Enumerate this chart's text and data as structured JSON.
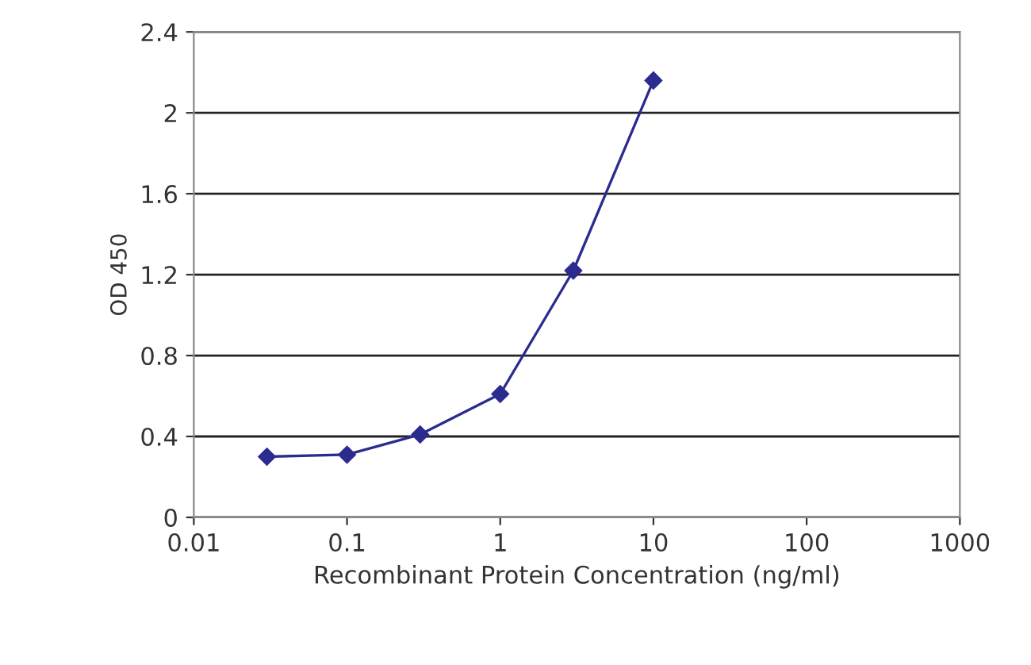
{
  "chart_data": {
    "type": "line",
    "xlabel": "Recombinant Protein Concentration (ng/ml)",
    "ylabel": "OD 450",
    "x": [
      0.03,
      0.1,
      0.3,
      1,
      3,
      10
    ],
    "series": [
      {
        "color": "#2b2b90",
        "values": [
          0.3,
          0.31,
          0.41,
          0.61,
          1.22,
          2.16
        ]
      }
    ],
    "log": "x",
    "xlim": [
      0.01,
      1000
    ],
    "xticks": [
      0.01,
      0.1,
      1,
      10,
      100,
      1000
    ],
    "ylim": [
      0,
      2.4
    ],
    "yticks": [
      0,
      0.4,
      0.8,
      1.2,
      1.6,
      2,
      2.4
    ],
    "grid": "y",
    "marker": "diamond",
    "line_style": "solid"
  }
}
